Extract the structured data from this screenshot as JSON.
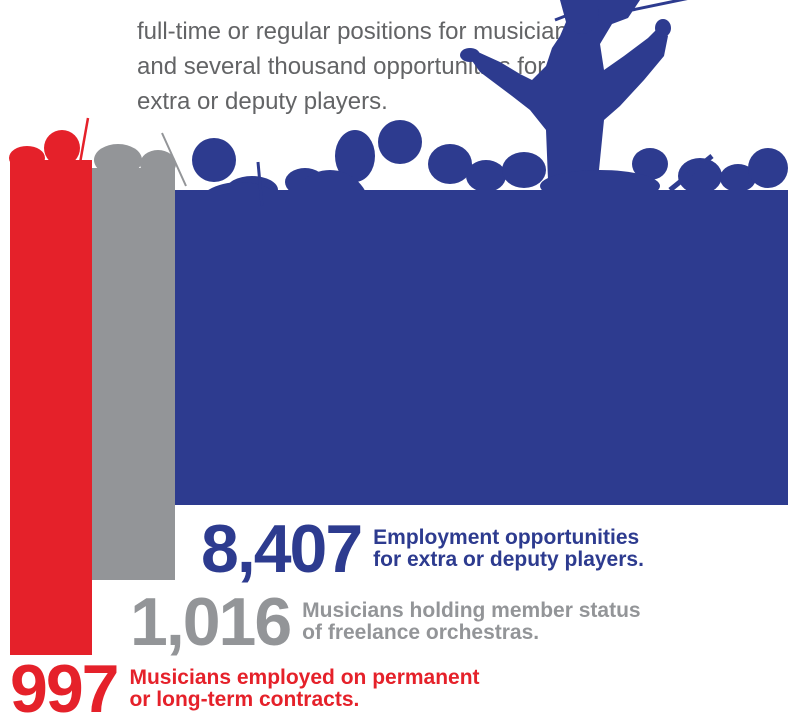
{
  "intro": {
    "line1": "full-time or regular positions for musicians,",
    "line2": "and several thousand opportunities for",
    "line3": "extra or deputy players."
  },
  "chart_data": {
    "type": "bar",
    "categories": [
      "Musicians employed on permanent or long-term contracts.",
      "Musicians holding member status of freelance orchestras.",
      "Employment opportunities for extra or deputy players."
    ],
    "values": [
      997,
      1016,
      8407
    ],
    "value_labels": [
      "997",
      "1,016",
      "8,407"
    ],
    "colors": [
      "#e5212a",
      "#939598",
      "#2d3b8f"
    ]
  },
  "stats": {
    "blue": {
      "value": "8,407",
      "line1": "Employment opportunities",
      "line2": "for extra or deputy players."
    },
    "grey": {
      "value": "1,016",
      "line1": "Musicians holding member status",
      "line2": "of freelance orchestras."
    },
    "red": {
      "value": "997",
      "line1": "Musicians employed on permanent",
      "line2": "or long-term contracts."
    }
  }
}
